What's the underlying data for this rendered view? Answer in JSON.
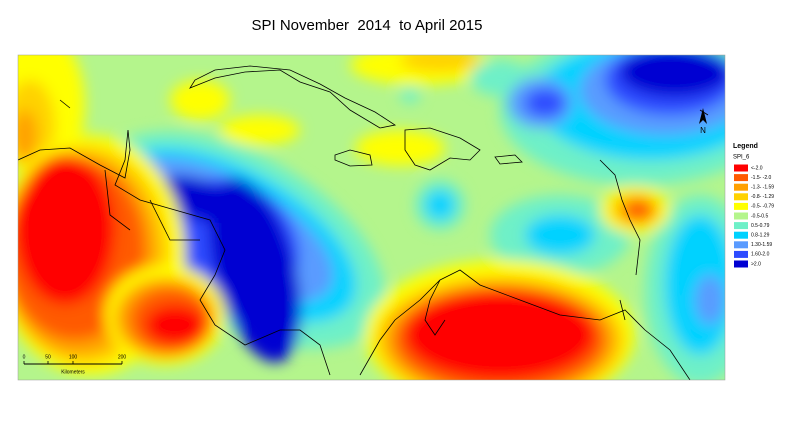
{
  "title": "SPI November  2014  to April 2015",
  "legend": {
    "title": "Legend",
    "field": "SPI_6",
    "items": [
      {
        "label": "<-2.0",
        "color": "#ff0000"
      },
      {
        "label": "-1.5- -2.0",
        "color": "#ff5a00"
      },
      {
        "label": "-1.3- -1.59",
        "color": "#ffa000"
      },
      {
        "label": "-0.8- -1.29",
        "color": "#ffd200"
      },
      {
        "label": "-0.5- -0.79",
        "color": "#ffff00"
      },
      {
        "label": "-0.5-0.5",
        "color": "#b4f58c"
      },
      {
        "label": "0.5-0.79",
        "color": "#6ef0c8"
      },
      {
        "label": "0.8-1.29",
        "color": "#00d2ff"
      },
      {
        "label": "1.30-1.59",
        "color": "#5a9bff"
      },
      {
        "label": "1.60-2.0",
        "color": "#2d4bff"
      },
      {
        "label": ">2.0",
        "color": "#0000d2"
      }
    ]
  },
  "scale_bar": {
    "labels": [
      "0",
      "50",
      "100",
      "200"
    ],
    "unit": "Kilometers"
  },
  "north_arrow": "N"
}
